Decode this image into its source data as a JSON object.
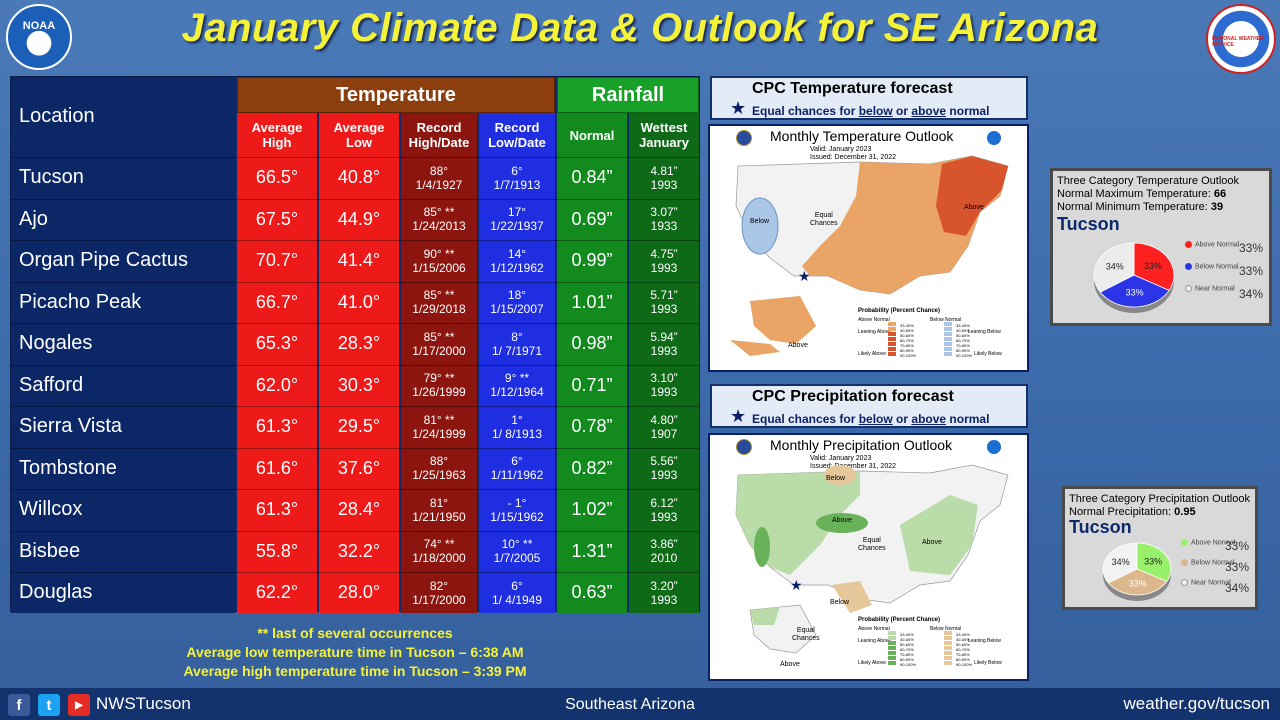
{
  "header": {
    "title": "January Climate Data & Outlook for SE Arizona",
    "noaa_logo_text": "NOAA",
    "nws_logo_text": "NATIONAL WEATHER SERVICE"
  },
  "table": {
    "location_header": "Location",
    "temperature_header": "Temperature",
    "rainfall_header": "Rainfall",
    "sub_headers": {
      "avg_high": "Average High",
      "avg_low": "Average Low",
      "record_high": "Record High/Date",
      "record_low": "Record Low/Date",
      "normal": "Normal",
      "wettest": "Wettest January"
    },
    "rows": [
      {
        "location": "Tucson",
        "avg_high": "66.5°",
        "avg_low": "40.8°",
        "record_high": "88°\n1/4/1927",
        "record_low": "6°\n1/7/1913",
        "normal": "0.84”",
        "wettest": "4.81”\n1993"
      },
      {
        "location": "Ajo",
        "avg_high": "67.5°",
        "avg_low": "44.9°",
        "record_high": "85° **\n1/24/2013",
        "record_low": "17°\n1/22/1937",
        "normal": "0.69”",
        "wettest": "3.07”\n1933"
      },
      {
        "location": "Organ Pipe Cactus",
        "avg_high": "70.7°",
        "avg_low": "41.4°",
        "record_high": "90° **\n1/15/2006",
        "record_low": "14°\n1/12/1962",
        "normal": "0.99”",
        "wettest": "4.75”\n1993"
      },
      {
        "location": "Picacho Peak",
        "avg_high": "66.7°",
        "avg_low": "41.0°",
        "record_high": "85° **\n1/29/2018",
        "record_low": "18°\n1/15/2007",
        "normal": "1.01”",
        "wettest": "5.71”\n1993"
      },
      {
        "location": "Nogales",
        "avg_high": "65.3°",
        "avg_low": "28.3°",
        "record_high": "85° **\n1/17/2000",
        "record_low": "8°\n1/ 7/1971",
        "normal": "0.98”",
        "wettest": "5.94”\n1993"
      },
      {
        "location": "Safford",
        "avg_high": "62.0°",
        "avg_low": "30.3°",
        "record_high": "79° **\n1/26/1999",
        "record_low": "9° **\n1/12/1964",
        "normal": "0.71”",
        "wettest": "3.10”\n1993"
      },
      {
        "location": "Sierra Vista",
        "avg_high": "61.3°",
        "avg_low": "29.5°",
        "record_high": "81° **\n1/24/1999",
        "record_low": "1°\n1/ 8/1913",
        "normal": "0.78”",
        "wettest": "4.80”\n1907"
      },
      {
        "location": "Tombstone",
        "avg_high": "61.6°",
        "avg_low": "37.6°",
        "record_high": "88°\n1/25/1963",
        "record_low": "6°\n1/11/1962",
        "normal": "0.82”",
        "wettest": "5.56”\n1993"
      },
      {
        "location": "Willcox",
        "avg_high": "61.3°",
        "avg_low": "28.4°",
        "record_high": "81°\n1/21/1950",
        "record_low": "- 1°\n1/15/1962",
        "normal": "1.02”",
        "wettest": "6.12”\n1993"
      },
      {
        "location": "Bisbee",
        "avg_high": "55.8°",
        "avg_low": "32.2°",
        "record_high": "74° **\n1/18/2000",
        "record_low": "10° **\n1/7/2005",
        "normal": "1.31”",
        "wettest": "3.86”\n2010"
      },
      {
        "location": "Douglas",
        "avg_high": "62.2°",
        "avg_low": "28.0°",
        "record_high": "82°\n1/17/2000",
        "record_low": "6°\n1/ 4/1949",
        "normal": "0.63”",
        "wettest": "3.20”\n1993"
      }
    ]
  },
  "notes": {
    "line1": "** last of several occurrences",
    "line2": "Average low temperature time in Tucson – 6:38 AM",
    "line3": "Average high temperature time in Tucson – 3:39 PM"
  },
  "temp_panel": {
    "title": "CPC Temperature forecast",
    "star": "★",
    "subtitle_pre": "Equal  chances for ",
    "below": "below",
    "or": " or ",
    "above": "above",
    "subtitle_post": " normal",
    "map_title": "Monthly Temperature Outlook",
    "valid": "Valid:  January 2023",
    "issued": "Issued:  December 31, 2022",
    "lbl_below": "Below",
    "lbl_equal": "Equal\nChances",
    "lbl_above1": "Above",
    "lbl_above2": "Above",
    "legend_title": "Probability (Percent Chance)",
    "legend_above_normal": "Above Normal",
    "legend_below_normal": "Below Normal",
    "legend_leaning_above": "Leaning Above",
    "legend_likely_above": "Likely Above",
    "legend_leaning_below": "Leaning Below",
    "legend_likely_below": "Likely Below",
    "legend_ranges": [
      "33-40%",
      "40-50%",
      "50-60%",
      "60-70%",
      "70-80%",
      "80-90%",
      "90-100%"
    ],
    "color_above": "#e9a466",
    "color_above_strong": "#d7542c",
    "color_below": "#a9c6e6"
  },
  "precip_panel": {
    "title": "CPC Precipitation forecast",
    "star": "★",
    "subtitle_pre": "Equal  chances for ",
    "below": "below",
    "or": " or ",
    "above": "above",
    "subtitle_post": " normal",
    "map_title": "Monthly Precipitation Outlook",
    "valid": "Valid:  January 2023",
    "issued": "Issued:  December 31, 2022",
    "lbl_below_top": "Below",
    "lbl_above_west": "Above",
    "lbl_above_east": "Above",
    "lbl_equal": "Equal\nChances",
    "lbl_below_tx": "Below",
    "lbl_equal_ak": "Equal\nChances",
    "lbl_above_ak": "Above",
    "legend_title": "Probability (Percent Chance)",
    "legend_above_normal": "Above Normal",
    "legend_below_normal": "Below Normal",
    "legend_leaning_above": "Leaning Above",
    "legend_likely_above": "Likely Above",
    "legend_leaning_below": "Leaning Below",
    "legend_likely_below": "Likely Below",
    "legend_ranges": [
      "33-40%",
      "40-50%",
      "50-60%",
      "60-70%",
      "70-80%",
      "80-90%",
      "90-100%"
    ],
    "color_above": "#b9dca8",
    "color_above_strong": "#6ab25a",
    "color_below": "#e5c79a"
  },
  "temp_pie": {
    "heading": "Three Category Temperature Outlook",
    "max_label": "Normal Maximum Temperature: ",
    "max_value": "66",
    "min_label": "Normal Minimum Temperature: ",
    "min_value": "39",
    "city": "Tucson",
    "above_label": "Above Normal",
    "below_label": "Below Normal",
    "near_label": "Near Normal",
    "above_pct": "33%",
    "below_pct": "33%",
    "near_pct": "34%",
    "slice_above": "33%",
    "slice_below": "33%",
    "slice_near": "34%",
    "values": {
      "above": 33,
      "below": 33,
      "near": 34
    },
    "colors": {
      "above": "#ff2020",
      "below": "#2b35e8",
      "near": "#ececec"
    }
  },
  "precip_pie": {
    "heading": "Three Category Precipitation Outlook",
    "normal_label": "Normal Precipitation: ",
    "normal_value": "0.95",
    "city": "Tucson",
    "above_label": "Above Normal",
    "below_label": "Below Normal",
    "near_label": "Near Normal",
    "above_pct": "33%",
    "below_pct": "33%",
    "near_pct": "34%",
    "slice_above": "33%",
    "slice_below": "33%",
    "slice_near": "34%",
    "values": {
      "above": 33,
      "below": 33,
      "near": 34
    },
    "colors": {
      "above": "#98f06a",
      "below": "#dcb78b",
      "near": "#f2f2f2"
    }
  },
  "footer": {
    "fb": "f",
    "tw": "t",
    "yt": "▶",
    "handle": "NWSTucson",
    "region": "Southeast Arizona",
    "site": "weather.gov/tucson"
  }
}
